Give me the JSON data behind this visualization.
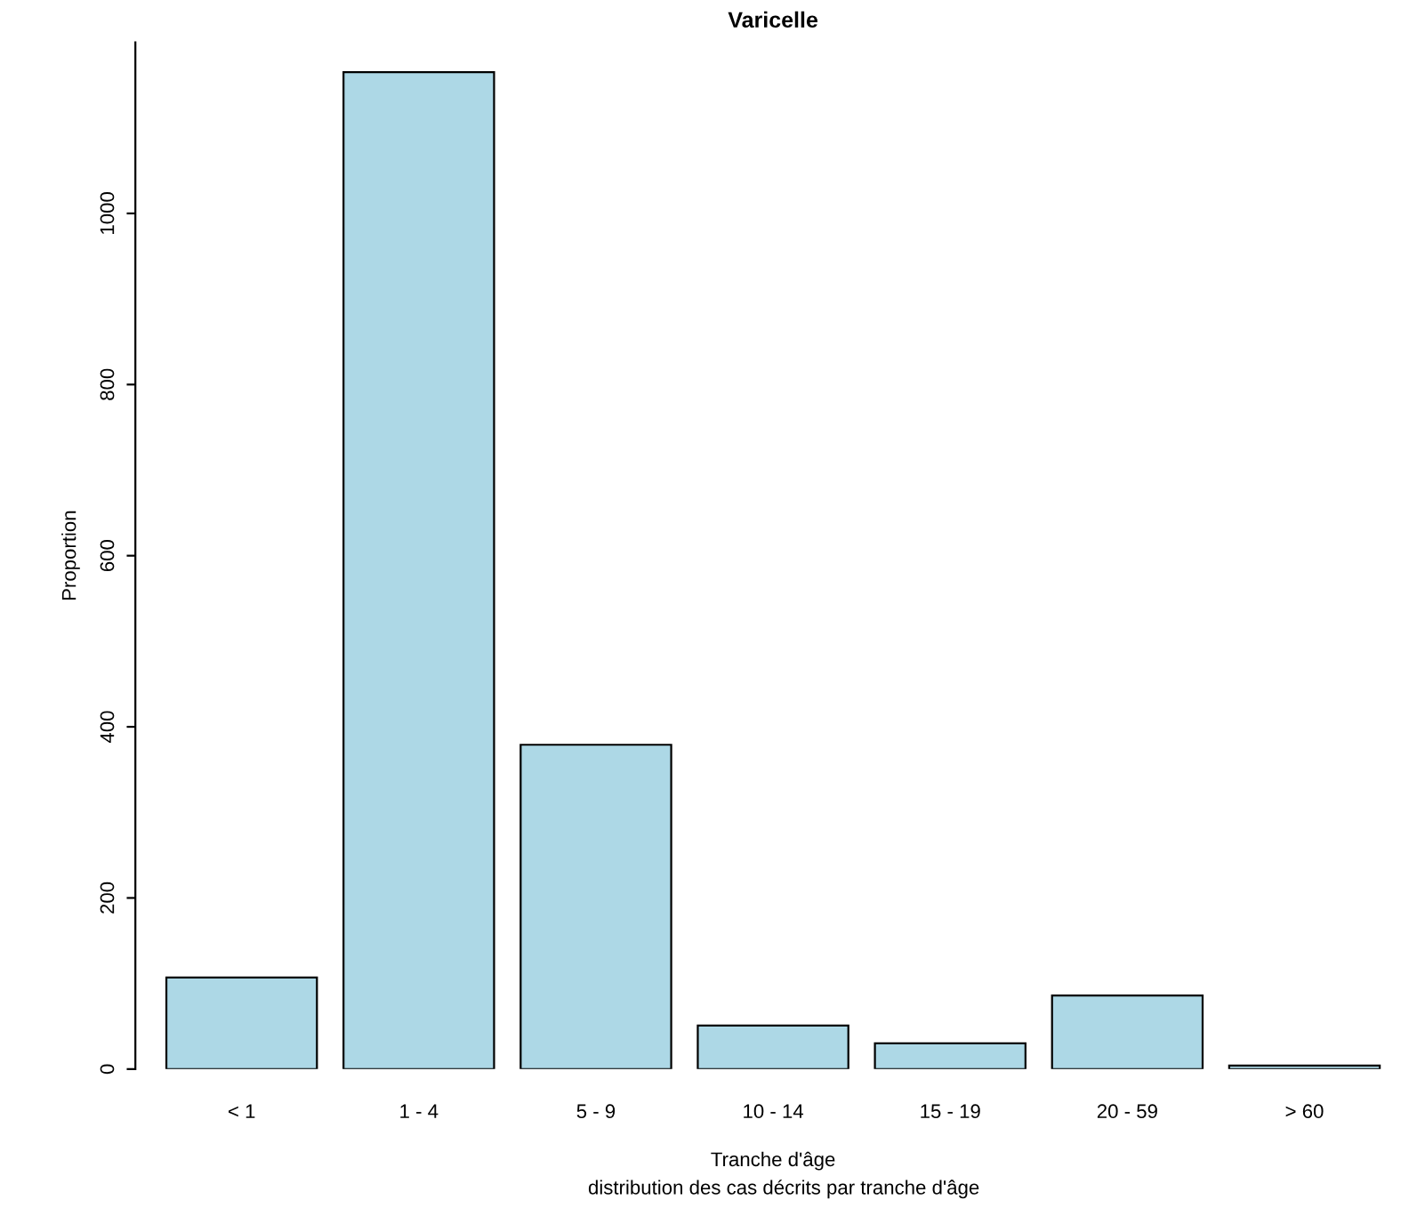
{
  "chart_data": {
    "type": "bar",
    "title": "Varicelle",
    "xlabel": "Tranche d'âge",
    "ylabel": "Proportion",
    "annotations": [
      "distribution des cas décrits par tranche d'âge"
    ],
    "categories": [
      "< 1",
      "1 - 4",
      "5 - 9",
      "10 - 14",
      "15 - 19",
      "20 - 59",
      "> 60"
    ],
    "values": [
      107,
      1165,
      379,
      51,
      30,
      86,
      4
    ],
    "color": "#add8e6",
    "ylim": [
      0,
      1200
    ],
    "yticks": [
      0,
      200,
      400,
      600,
      800,
      1000
    ],
    "grid": false
  }
}
